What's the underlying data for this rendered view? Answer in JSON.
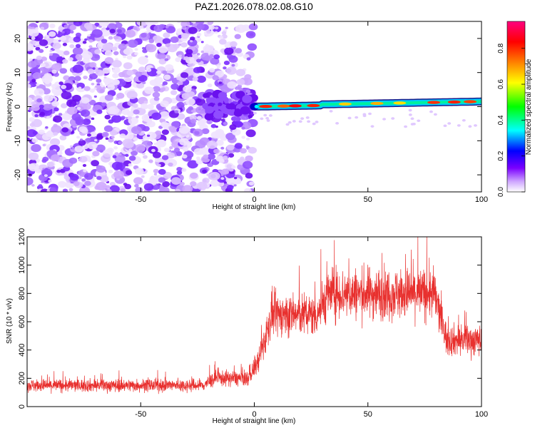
{
  "figure_title": "PAZ1.2026.078.02.08.G10",
  "chart_data": [
    {
      "type": "heatmap",
      "title": "PAZ1.2026.078.02.08.G10",
      "xlabel": "Height of straight line (km)",
      "ylabel": "Frequency (Hz)",
      "xlim": [
        -100,
        100
      ],
      "ylim": [
        -25,
        25
      ],
      "xticks": [
        -50,
        0,
        50,
        100
      ],
      "yticks": [
        20,
        10,
        0,
        -10,
        -20
      ],
      "colorbar": {
        "label": "Normalized spectral amplitude",
        "range": [
          0,
          0.95
        ],
        "ticks": [
          0.0,
          0.2,
          0.4,
          0.6,
          0.8
        ],
        "colors": [
          "#ffffff",
          "#7a00ff",
          "#0000ff",
          "#00ffff",
          "#00ff00",
          "#ffff00",
          "#ff8000",
          "#ff0000",
          "#ff0080"
        ]
      },
      "description_regions": [
        {
          "x_range": [
            -100,
            0
          ],
          "frequency_range": [
            -25,
            25
          ],
          "amplitude": 0.1
        },
        {
          "x_range": [
            0,
            100
          ],
          "frequency_center": 0.5,
          "amplitude_peak": 0.9
        }
      ]
    },
    {
      "type": "line",
      "xlabel": "Height of straight line (km)",
      "ylabel": "SNR (10 * v/v)",
      "xlim": [
        -100,
        100
      ],
      "ylim": [
        0,
        1200
      ],
      "xticks": [
        -50,
        0,
        50,
        100
      ],
      "yticks": [
        0,
        200,
        400,
        600,
        800,
        1000,
        1200
      ],
      "line_color": "#e8302e",
      "segments": [
        {
          "x": [
            -100,
            -20
          ],
          "y_mean": 150
        },
        {
          "x": [
            -20,
            0
          ],
          "y_mean": 200
        },
        {
          "x": [
            0,
            5
          ],
          "y_mean": 350
        },
        {
          "x": [
            5,
            30
          ],
          "y_mean": 650
        },
        {
          "x": [
            30,
            82
          ],
          "y_mean": 800
        },
        {
          "x": [
            82,
            100
          ],
          "y_mean": 470
        }
      ]
    }
  ]
}
